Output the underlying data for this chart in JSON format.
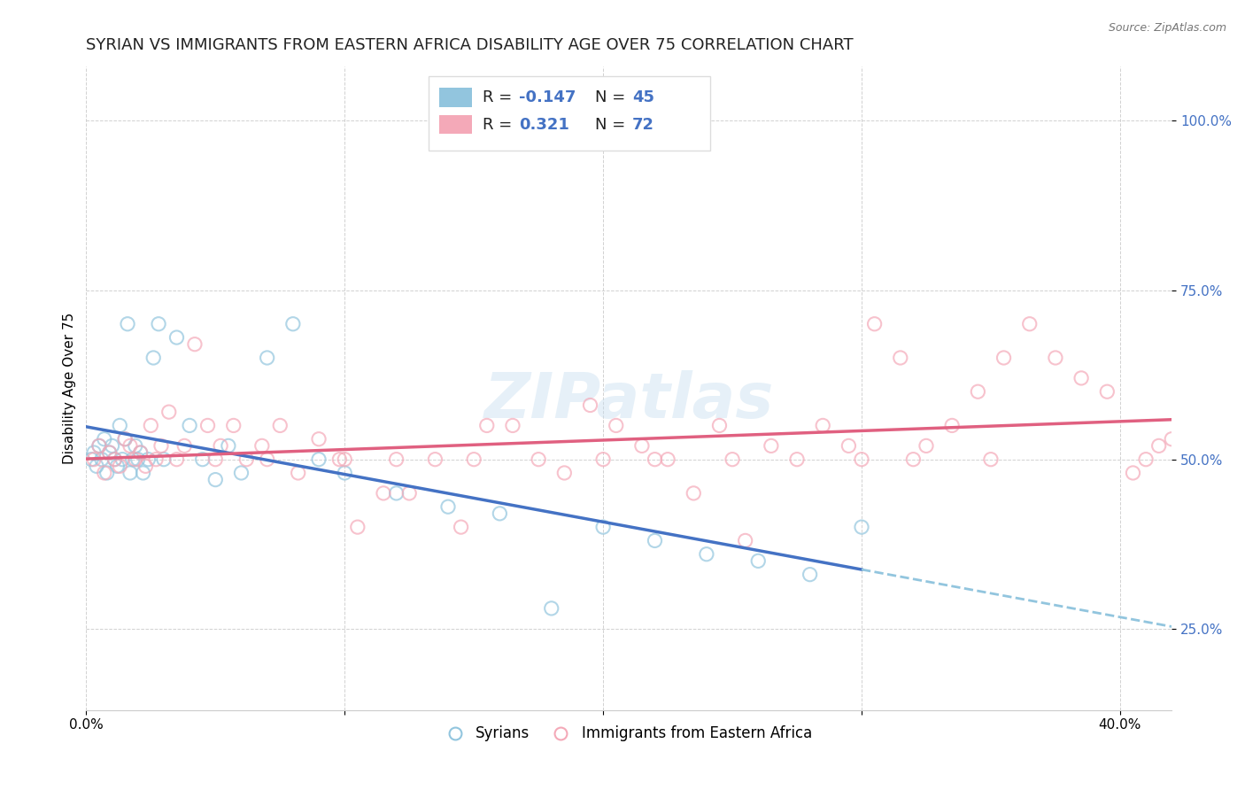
{
  "title": "SYRIAN VS IMMIGRANTS FROM EASTERN AFRICA DISABILITY AGE OVER 75 CORRELATION CHART",
  "source": "Source: ZipAtlas.com",
  "ylabel": "Disability Age Over 75",
  "xlim": [
    0.0,
    42.0
  ],
  "ylim": [
    13.0,
    108.0
  ],
  "yticks": [
    25.0,
    50.0,
    75.0,
    100.0
  ],
  "xticks": [
    0.0,
    10.0,
    20.0,
    30.0,
    40.0
  ],
  "xtick_labels": [
    "0.0%",
    "",
    "",
    "",
    "40.0%"
  ],
  "color_syrian": "#92c5de",
  "color_eastern": "#f4a9b8",
  "color_trend_syrian_solid": "#4472c4",
  "color_trend_syrian_dash": "#92c5de",
  "color_trend_eastern": "#e06080",
  "scatter_alpha": 0.7,
  "watermark": "ZIPatlas",
  "legend_label1": "Syrians",
  "legend_label2": "Immigrants from Eastern Africa",
  "syrian_x": [
    0.2,
    0.3,
    0.4,
    0.5,
    0.6,
    0.7,
    0.8,
    0.9,
    1.0,
    1.1,
    1.2,
    1.3,
    1.4,
    1.5,
    1.6,
    1.7,
    1.8,
    1.9,
    2.0,
    2.1,
    2.2,
    2.4,
    2.6,
    2.8,
    3.0,
    3.5,
    4.0,
    4.5,
    5.0,
    5.5,
    6.0,
    7.0,
    8.0,
    9.0,
    10.0,
    12.0,
    14.0,
    16.0,
    18.0,
    20.0,
    22.0,
    24.0,
    26.0,
    28.0,
    30.0
  ],
  "syrian_y": [
    50,
    51,
    49,
    52,
    50,
    53,
    48,
    51,
    52,
    50,
    49,
    55,
    50,
    53,
    70,
    48,
    50,
    52,
    50,
    51,
    48,
    50,
    65,
    70,
    50,
    68,
    55,
    50,
    47,
    52,
    48,
    65,
    70,
    50,
    48,
    45,
    43,
    42,
    28,
    40,
    38,
    36,
    35,
    33,
    40
  ],
  "eastern_x": [
    0.3,
    0.5,
    0.7,
    0.9,
    1.1,
    1.3,
    1.5,
    1.7,
    1.9,
    2.1,
    2.3,
    2.5,
    2.7,
    2.9,
    3.2,
    3.5,
    3.8,
    4.2,
    4.7,
    5.2,
    5.7,
    6.2,
    6.8,
    7.5,
    8.2,
    9.0,
    9.8,
    10.5,
    11.5,
    12.5,
    13.5,
    14.5,
    15.5,
    16.5,
    17.5,
    18.5,
    19.5,
    20.5,
    21.5,
    22.5,
    23.5,
    24.5,
    25.5,
    26.5,
    27.5,
    28.5,
    29.5,
    30.5,
    31.5,
    32.5,
    33.5,
    34.5,
    35.5,
    36.5,
    37.5,
    38.5,
    39.5,
    40.5,
    41.0,
    41.5,
    42.0,
    10.0,
    20.0,
    30.0,
    7.0,
    15.0,
    25.0,
    35.0,
    5.0,
    12.0,
    22.0,
    32.0
  ],
  "eastern_y": [
    50,
    52,
    48,
    51,
    50,
    49,
    53,
    52,
    50,
    51,
    49,
    55,
    50,
    52,
    57,
    50,
    52,
    67,
    55,
    52,
    55,
    50,
    52,
    55,
    48,
    53,
    50,
    40,
    45,
    45,
    50,
    40,
    55,
    55,
    50,
    48,
    58,
    55,
    52,
    50,
    45,
    55,
    38,
    52,
    50,
    55,
    52,
    70,
    65,
    52,
    55,
    60,
    65,
    70,
    65,
    62,
    60,
    48,
    50,
    52,
    53,
    50,
    50,
    50,
    50,
    50,
    50,
    50,
    50,
    50,
    50,
    50
  ],
  "bg_color": "#ffffff",
  "grid_color": "#cccccc",
  "title_fontsize": 13,
  "axis_label_fontsize": 11,
  "tick_fontsize": 11
}
